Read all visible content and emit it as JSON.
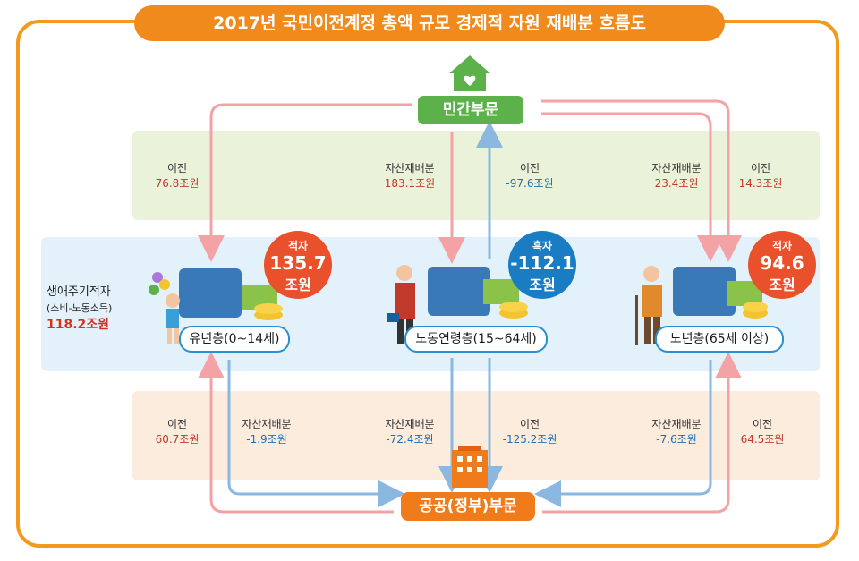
{
  "title": "2017년 국민이전계정 총액 규모 경제적 자원 재배분 흐름도",
  "sectors": {
    "private": "민간부문",
    "public": "공공(정부)부문"
  },
  "age_groups": {
    "youth": {
      "label": "유년층(0~14세)",
      "balance_kind": "적자",
      "balance_value": "135.7",
      "balance_unit": "조원"
    },
    "working": {
      "label": "노동연령층(15~64세)",
      "balance_kind": "흑자",
      "balance_value": "-112.1",
      "balance_unit": "조원"
    },
    "elderly": {
      "label": "노년층(65세 이상)",
      "balance_kind": "적자",
      "balance_value": "94.6",
      "balance_unit": "조원"
    }
  },
  "lifecycle": {
    "title": "생애주기적자",
    "sub": "(소비-노동소득)",
    "value": "118.2조원"
  },
  "private_flows": [
    {
      "name": "이전",
      "value": "76.8조원"
    },
    {
      "name": "자산재배분",
      "value": "183.1조원"
    },
    {
      "name": "이전",
      "value": "-97.6조원"
    },
    {
      "name": "자산재배분",
      "value": "23.4조원"
    },
    {
      "name": "이전",
      "value": "14.3조원"
    }
  ],
  "public_flows": [
    {
      "name": "이전",
      "value": "60.7조원"
    },
    {
      "name": "자산재배분",
      "value": "-1.9조원"
    },
    {
      "name": "자산재배분",
      "value": "-72.4조원"
    },
    {
      "name": "이전",
      "value": "-125.2조원"
    },
    {
      "name": "자산재배분",
      "value": "-7.6조원"
    },
    {
      "name": "이전",
      "value": "64.5조원"
    }
  ],
  "colors": {
    "frame": "#f39a1e",
    "pink_arrow": "#f3a2a6",
    "blue_arrow": "#8ab8e0",
    "deficit": "#e8512b",
    "surplus": "#1a7dc4"
  }
}
